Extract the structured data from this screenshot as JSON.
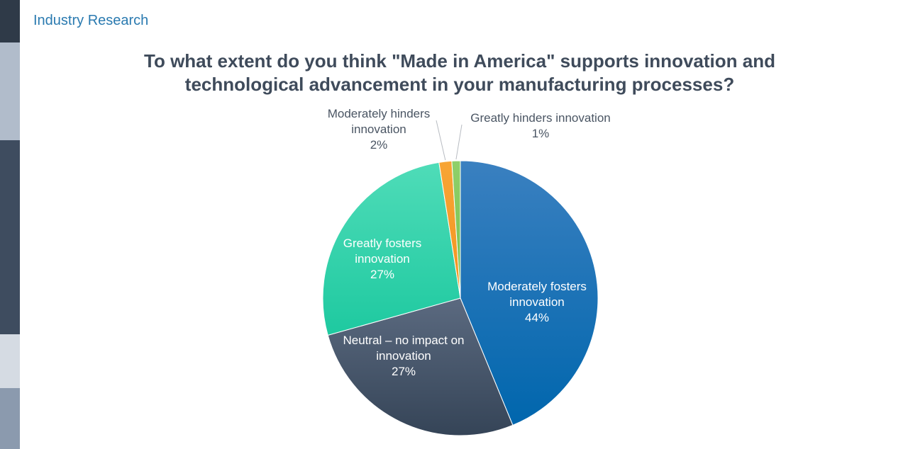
{
  "header": {
    "label": "Industry Research"
  },
  "colors": {
    "sidebar": [
      "#2f3a48",
      "#b1bccb",
      "#3e4c5f",
      "#d5dbe3",
      "#8b9aae"
    ],
    "slices": {
      "moderately_fosters": [
        "#3a80c0",
        "#0066ad"
      ],
      "neutral": [
        "#5b6a80",
        "#354457"
      ],
      "greatly_fosters": [
        "#4fdcb8",
        "#1ec9a0"
      ],
      "moderately_hinders": [
        "#f7a535",
        "#f39420"
      ],
      "greatly_hinders": [
        "#8fd06a",
        "#76c04f"
      ]
    }
  },
  "chart_data": {
    "type": "pie",
    "title": "To what extent do you think \"Made in America\" supports innovation and technological advancement in your manufacturing processes?",
    "title_lines": [
      "To what extent do you think \"Made in America\" supports innovation and",
      "technological advancement in your manufacturing processes?"
    ],
    "start_angle_deg": 0,
    "direction": "clockwise",
    "slices": [
      {
        "key": "moderately_fosters",
        "name": "Moderately fosters innovation",
        "value": 44,
        "label_lines": [
          "Moderately fosters",
          "innovation"
        ],
        "pct": "44%",
        "label_pos": "inside"
      },
      {
        "key": "neutral",
        "name": "Neutral – no impact on innovation",
        "value": 27,
        "label_lines": [
          "Neutral – no impact on",
          "innovation"
        ],
        "pct": "27%",
        "label_pos": "inside"
      },
      {
        "key": "greatly_fosters",
        "name": "Greatly fosters innovation",
        "value": 27,
        "label_lines": [
          "Greatly fosters",
          "innovation"
        ],
        "pct": "27%",
        "label_pos": "inside"
      },
      {
        "key": "moderately_hinders",
        "name": "Moderately hinders innovation",
        "value": 1.5,
        "label_lines": [
          "Moderately hinders",
          "innovation"
        ],
        "pct": "2%",
        "label_pos": "outside"
      },
      {
        "key": "greatly_hinders",
        "name": "Greatly hinders innovation",
        "value": 1,
        "label_lines": [
          "Greatly hinders innovation"
        ],
        "pct": "1%",
        "label_pos": "outside"
      }
    ]
  }
}
